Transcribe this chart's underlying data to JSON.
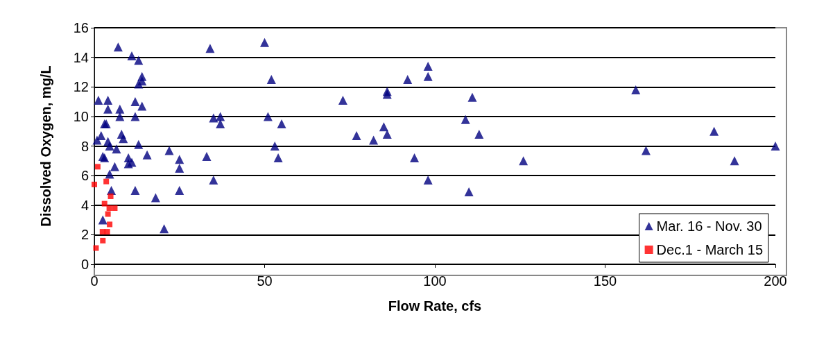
{
  "chart_data": {
    "type": "scatter",
    "xlabel": "Flow Rate, cfs",
    "ylabel": "Dissolved Oxygen, mg/L",
    "xlim": [
      0,
      200
    ],
    "xticks": [
      0,
      50,
      100,
      150,
      200
    ],
    "ylim": [
      0,
      16
    ],
    "yticks": [
      0,
      2,
      4,
      6,
      8,
      10,
      12,
      14,
      16
    ],
    "grid": "y",
    "legend": "bottom right",
    "series": [
      {
        "name": "Mar. 16 - Nov. 30",
        "color": "#000080",
        "marker": "triangle",
        "x": [
          0.8,
          1.2,
          2,
          2.5,
          2.5,
          3,
          3,
          3.5,
          4,
          4,
          4,
          4.5,
          4.5,
          5,
          6,
          6.5,
          7,
          7.5,
          7.5,
          8,
          8.5,
          10,
          10,
          11,
          11,
          12,
          12,
          12,
          13,
          13,
          13,
          14,
          14,
          14,
          15.5,
          18,
          20.5,
          22,
          25,
          25,
          25,
          33,
          34,
          35,
          35,
          37,
          37,
          50,
          51,
          52,
          53,
          54,
          55,
          73,
          77,
          82,
          85,
          86,
          86,
          86,
          92,
          94,
          98,
          98,
          98,
          109,
          110,
          111,
          113,
          126,
          159,
          162,
          182,
          188,
          200
        ],
        "values": [
          8.4,
          11.1,
          8.7,
          7.3,
          3.0,
          7.2,
          9.5,
          9.5,
          11.1,
          10.5,
          8.3,
          8.0,
          6.1,
          5.0,
          6.6,
          7.8,
          14.7,
          10.5,
          10.0,
          8.8,
          8.5,
          7.2,
          6.8,
          6.9,
          14.1,
          11.0,
          10.0,
          5.0,
          13.8,
          12.2,
          8.1,
          12.7,
          12.4,
          10.7,
          7.4,
          4.5,
          2.4,
          7.7,
          7.1,
          6.5,
          5.0,
          7.3,
          14.6,
          9.9,
          5.7,
          10.0,
          9.5,
          15.0,
          10.0,
          12.5,
          8.0,
          7.2,
          9.5,
          11.1,
          8.7,
          8.4,
          9.3,
          11.7,
          11.5,
          8.8,
          12.5,
          7.2,
          13.4,
          12.7,
          5.7,
          9.8,
          4.9,
          11.3,
          8.8,
          7.0,
          11.8,
          7.7,
          9.0,
          7.0,
          8.0
        ]
      },
      {
        "name": "Dec.1 - March 15",
        "color": "#ff0000",
        "marker": "square",
        "x": [
          0,
          0.5,
          1,
          2.5,
          3,
          2.4,
          3.5,
          3.8,
          4,
          4.5,
          4.8,
          4.4,
          6
        ],
        "values": [
          5.4,
          1.1,
          6.6,
          1.6,
          4.1,
          2.2,
          5.6,
          2.2,
          3.4,
          2.7,
          4.6,
          3.8,
          3.8
        ]
      }
    ]
  }
}
